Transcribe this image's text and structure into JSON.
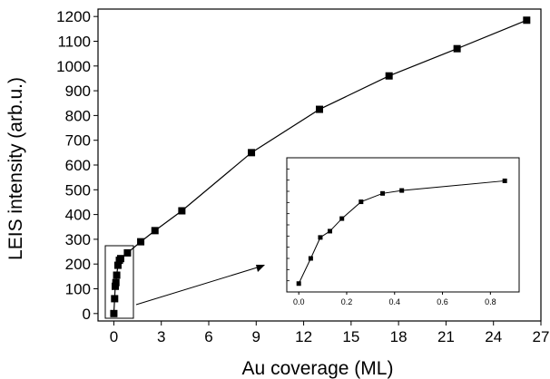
{
  "chart_data": [
    {
      "type": "line",
      "xlabel": "Au coverage (ML)",
      "ylabel": "LEIS intensity (arb.u.)",
      "xlim": [
        -1,
        27
      ],
      "ylim": [
        -30,
        1230
      ],
      "xticks": [
        0,
        3,
        6,
        9,
        12,
        15,
        18,
        21,
        24,
        27
      ],
      "yticks": [
        0,
        100,
        200,
        300,
        400,
        500,
        600,
        700,
        800,
        900,
        1000,
        1100,
        1200
      ],
      "marker": "square",
      "series": [
        {
          "x": [
            0.0,
            0.05,
            0.09,
            0.13,
            0.18,
            0.26,
            0.35,
            0.43,
            0.86,
            1.7,
            2.6,
            4.3,
            8.7,
            13.0,
            17.4,
            21.7,
            26.1
          ],
          "y": [
            0,
            60,
            110,
            125,
            155,
            195,
            215,
            222,
            245,
            290,
            335,
            415,
            650,
            825,
            960,
            1070,
            1185
          ]
        }
      ]
    },
    {
      "type": "line",
      "inset": true,
      "xlim": [
        -0.05,
        0.92
      ],
      "ylim": [
        -20,
        300
      ],
      "xticks": [
        0.0,
        0.2,
        0.4,
        0.6,
        0.8
      ],
      "xtick_labels": [
        "0.0",
        "0.2",
        "0.4",
        "0.6",
        "0.8"
      ],
      "marker": "square",
      "series": [
        {
          "x": [
            0.0,
            0.05,
            0.09,
            0.13,
            0.18,
            0.26,
            0.35,
            0.43,
            0.86
          ],
          "y": [
            0,
            60,
            110,
            125,
            155,
            195,
            215,
            222,
            245
          ]
        }
      ]
    }
  ]
}
